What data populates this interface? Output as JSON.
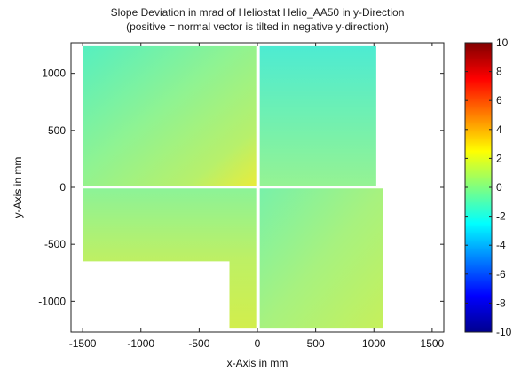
{
  "chart_data": {
    "type": "heatmap",
    "title": [
      "Slope Deviation in mrad of Heliostat Helio_AA50 in y-Direction",
      "(positive = normal vector is tilted in negative y-direction)"
    ],
    "xlabel": "x-Axis in mm",
    "ylabel": "y-Axis in mm",
    "xlim": [
      -1600,
      1600
    ],
    "ylim": [
      -1270,
      1270
    ],
    "x_ticks": [
      -1500,
      -1000,
      -500,
      0,
      500,
      1000,
      1500
    ],
    "y_ticks": [
      1000,
      500,
      0,
      -500,
      -1000
    ],
    "colorbar": {
      "range": [
        -10,
        10
      ],
      "ticks": [
        10,
        8,
        6,
        4,
        2,
        0,
        -2,
        -4,
        -6,
        -8,
        -10
      ],
      "colormap": "jet"
    },
    "facets": [
      {
        "name": "upper-left",
        "x_range": [
          -1500,
          -10
        ],
        "y_range": [
          15,
          1240
        ],
        "typical_value": 0.5
      },
      {
        "name": "upper-right",
        "x_range": [
          20,
          1020
        ],
        "y_range": [
          15,
          1240
        ],
        "typical_value": -0.5
      },
      {
        "name": "lower-left",
        "x_range": [
          -1500,
          -10
        ],
        "y_range": [
          -1240,
          -10
        ],
        "notch_x_range": [
          -1500,
          -240
        ],
        "notch_y_range": [
          -1240,
          -650
        ],
        "typical_value": 1.5
      },
      {
        "name": "lower-right",
        "x_range": [
          20,
          1080
        ],
        "y_range": [
          -1240,
          -10
        ],
        "typical_value": 0.5
      }
    ],
    "grid": false
  }
}
